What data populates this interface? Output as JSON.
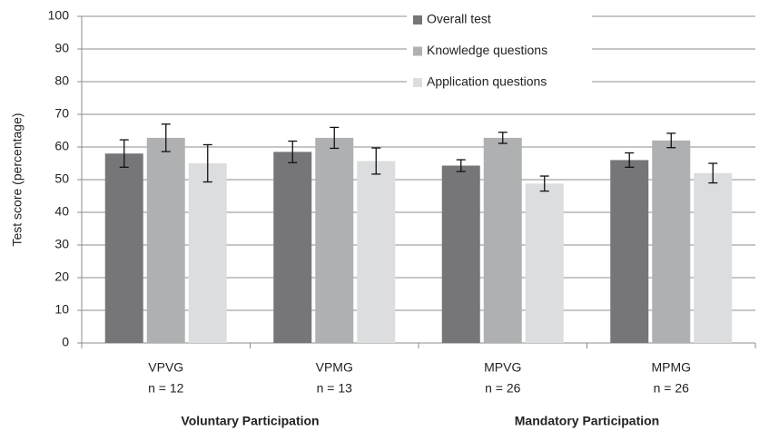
{
  "chart_data": {
    "type": "bar",
    "y_label": "Test score (percentage)",
    "categories": [
      "VPVG",
      "VPMG",
      "MPVG",
      "MPMG"
    ],
    "category_sublabels": [
      "n = 12",
      "n = 13",
      "n = 26",
      "n = 26"
    ],
    "groups": [
      {
        "label": "Voluntary Participation",
        "categories": [
          "VPVG",
          "VPMG"
        ]
      },
      {
        "label": "Mandatory Participation",
        "categories": [
          "MPVG",
          "MPMG"
        ]
      }
    ],
    "series": [
      {
        "name": "Overall test",
        "color": "#767679",
        "values": [
          58,
          58.5,
          54.3,
          56
        ],
        "errors": [
          4.2,
          3.3,
          1.8,
          2.2
        ]
      },
      {
        "name": "Knowledge questions",
        "color": "#aeb0b2",
        "values": [
          62.8,
          62.8,
          62.8,
          62
        ],
        "errors": [
          4.2,
          3.2,
          1.7,
          2.2
        ]
      },
      {
        "name": "Application questions",
        "color": "#dcdddf",
        "values": [
          55,
          55.7,
          48.8,
          52
        ],
        "errors": [
          5.7,
          4,
          2.3,
          3
        ]
      }
    ],
    "ylim": [
      0,
      100
    ],
    "yticks": [
      0,
      10,
      20,
      30,
      40,
      50,
      60,
      70,
      80,
      90,
      100
    ],
    "grid": true,
    "legend": "top"
  }
}
